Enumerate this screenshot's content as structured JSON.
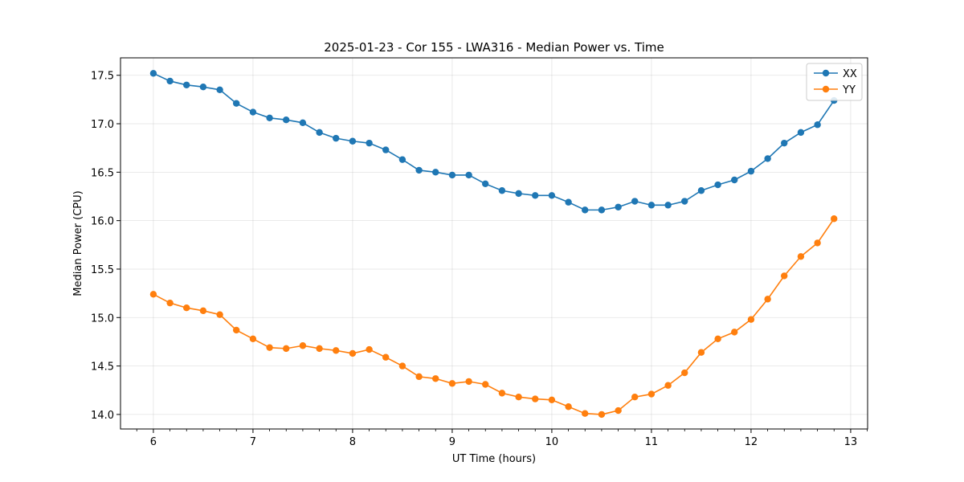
{
  "chart_data": {
    "type": "line",
    "title": "2025-01-23 - Cor 155 - LWA316 - Median Power vs. Time",
    "xlabel": "UT Time (hours)",
    "ylabel": "Median Power (CPU)",
    "xlim": [
      5.67,
      13.17
    ],
    "ylim": [
      13.85,
      17.68
    ],
    "xticks": [
      6,
      7,
      8,
      9,
      10,
      11,
      12,
      13
    ],
    "xtick_labels": [
      "6",
      "7",
      "8",
      "9",
      "10",
      "11",
      "12",
      "13"
    ],
    "yticks": [
      14.0,
      14.5,
      15.0,
      15.5,
      16.0,
      16.5,
      17.0,
      17.5
    ],
    "ytick_labels": [
      "14.0",
      "14.5",
      "15.0",
      "15.5",
      "16.0",
      "16.5",
      "17.0",
      "17.5"
    ],
    "grid": true,
    "legend_position": "top-right",
    "x": [
      6.0,
      6.167,
      6.333,
      6.5,
      6.667,
      6.833,
      7.0,
      7.167,
      7.333,
      7.5,
      7.667,
      7.833,
      8.0,
      8.167,
      8.333,
      8.5,
      8.667,
      8.833,
      9.0,
      9.167,
      9.333,
      9.5,
      9.667,
      9.833,
      10.0,
      10.167,
      10.333,
      10.5,
      10.667,
      10.833,
      11.0,
      11.167,
      11.333,
      11.5,
      11.667,
      11.833,
      12.0,
      12.167,
      12.333,
      12.5,
      12.667,
      12.833
    ],
    "series": [
      {
        "name": "XX",
        "color": "#1f77b4",
        "values": [
          17.52,
          17.44,
          17.4,
          17.38,
          17.35,
          17.21,
          17.12,
          17.06,
          17.04,
          17.01,
          16.91,
          16.85,
          16.82,
          16.8,
          16.73,
          16.63,
          16.52,
          16.5,
          16.47,
          16.47,
          16.38,
          16.31,
          16.28,
          16.26,
          16.26,
          16.19,
          16.11,
          16.11,
          16.14,
          16.2,
          16.16,
          16.16,
          16.2,
          16.31,
          16.37,
          16.42,
          16.51,
          16.64,
          16.8,
          16.91,
          16.99,
          17.24
        ]
      },
      {
        "name": "YY",
        "color": "#ff7f0e",
        "values": [
          15.24,
          15.15,
          15.1,
          15.07,
          15.03,
          14.87,
          14.78,
          14.69,
          14.68,
          14.71,
          14.68,
          14.66,
          14.63,
          14.67,
          14.59,
          14.5,
          14.39,
          14.37,
          14.32,
          14.34,
          14.31,
          14.22,
          14.18,
          14.16,
          14.15,
          14.08,
          14.01,
          14.0,
          14.04,
          14.18,
          14.21,
          14.3,
          14.43,
          14.64,
          14.78,
          14.85,
          14.98,
          15.19,
          15.43,
          15.63,
          15.77,
          16.02
        ]
      }
    ]
  }
}
